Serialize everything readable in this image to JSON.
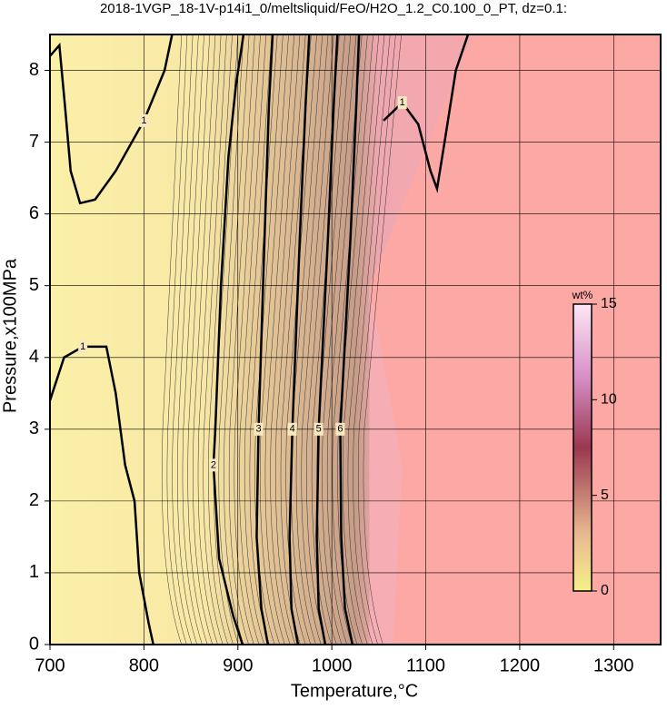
{
  "chart_data": {
    "type": "contour",
    "title": "2018-1VGP_18-1V-p14i1_0/meltsliquid/FeO/H2O_1.2_C0.100_0_PT, dz=0.1:",
    "x_label": "Temperature,°C",
    "y_label": "Pressure,x100MPa",
    "xlim": [
      700,
      1350
    ],
    "ylim": [
      0,
      8.5
    ],
    "xticks": [
      700,
      800,
      900,
      1000,
      1100,
      1200,
      1300
    ],
    "yticks": [
      0,
      1,
      2,
      3,
      4,
      5,
      6,
      7,
      8
    ],
    "grid": true,
    "contours": [
      {
        "level": 1,
        "x": [
          700,
          715,
          735,
          760,
          770,
          780,
          790,
          795,
          805,
          810
        ],
        "y": [
          3.4,
          4.0,
          4.15,
          4.15,
          3.5,
          2.5,
          2.0,
          1.0,
          0.3,
          0
        ],
        "label_at": 2
      },
      {
        "level": 1,
        "x": [
          700,
          710,
          716,
          722,
          732,
          748,
          770,
          800,
          822,
          830
        ],
        "y": [
          8.2,
          8.35,
          7.5,
          6.6,
          6.15,
          6.2,
          6.6,
          7.3,
          8.0,
          8.5
        ],
        "label_at": 7
      },
      {
        "level": 1,
        "x": [
          1055,
          1075,
          1092,
          1105,
          1112,
          1120,
          1132,
          1145
        ],
        "y": [
          7.3,
          7.55,
          7.25,
          6.6,
          6.35,
          7.0,
          8.0,
          8.5
        ],
        "label_at": 1
      },
      {
        "level": 2,
        "x": [
          905,
          895,
          880,
          874,
          876,
          882,
          890,
          898,
          906
        ],
        "y": [
          0,
          0.4,
          1.2,
          2.5,
          3.0,
          5.0,
          6.8,
          7.8,
          8.5
        ],
        "label_at": 3
      },
      {
        "level": 3,
        "x": [
          932,
          925,
          920,
          922,
          928,
          933,
          937
        ],
        "y": [
          0,
          0.5,
          1.5,
          3.0,
          5.5,
          7.5,
          8.5
        ],
        "label_at": 3
      },
      {
        "level": 4,
        "x": [
          964,
          957,
          955,
          958,
          966,
          972,
          976
        ],
        "y": [
          0,
          0.5,
          1.5,
          3.0,
          5.7,
          7.5,
          8.5
        ],
        "label_at": 3
      },
      {
        "level": 5,
        "x": [
          993,
          986,
          984,
          986,
          996,
          1002,
          1006
        ],
        "y": [
          0,
          0.5,
          1.5,
          3.0,
          5.7,
          7.5,
          8.5
        ],
        "label_at": 3
      },
      {
        "level": 6,
        "x": [
          1022,
          1014,
          1010,
          1009,
          1020,
          1026,
          1029
        ],
        "y": [
          0,
          0.5,
          1.5,
          3.0,
          5.7,
          7.5,
          8.5
        ],
        "label_at": 3
      }
    ],
    "colorbar": {
      "label": "wt%",
      "lim": [
        0,
        15
      ],
      "ticks": [
        0,
        5,
        10,
        15
      ]
    }
  }
}
